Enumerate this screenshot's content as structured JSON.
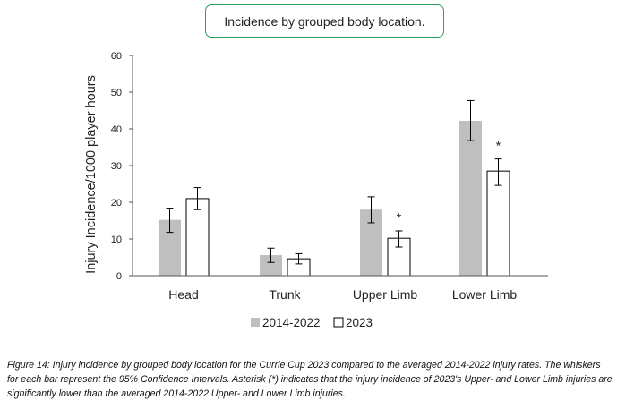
{
  "chart_data": {
    "type": "bar",
    "title": "Incidence by grouped body location.",
    "ylabel": "Injury Incidence/1000 player hours",
    "xlabel": "",
    "ylim": [
      0,
      60
    ],
    "yticks": [
      0,
      10,
      20,
      30,
      40,
      50,
      60
    ],
    "categories": [
      "Head",
      "Trunk",
      "Upper Limb",
      "Lower Limb"
    ],
    "series": [
      {
        "name": "2014-2022",
        "color": "#bfbfbf",
        "values": [
          15.2,
          5.6,
          18.0,
          42.2
        ],
        "ci_low": [
          11.8,
          3.6,
          14.4,
          36.8
        ],
        "ci_high": [
          18.4,
          7.5,
          21.5,
          47.7
        ]
      },
      {
        "name": "2023",
        "color": "#ffffff",
        "values": [
          21.0,
          4.6,
          10.2,
          28.5
        ],
        "ci_low": [
          18.0,
          3.2,
          7.8,
          24.6
        ],
        "ci_high": [
          24.0,
          6.0,
          12.2,
          31.8
        ]
      }
    ],
    "annotations": [
      {
        "category": "Upper Limb",
        "series": "2023",
        "text": "*"
      },
      {
        "category": "Lower Limb",
        "series": "2023",
        "text": "*"
      }
    ]
  },
  "caption": "Figure 14: Injury incidence by grouped body location for the Currie Cup 2023 compared to the averaged 2014-2022 injury rates. The whiskers for each bar represent the 95% Confidence Intervals. Asterisk (*) indicates that the injury incidence of 2023's Upper- and Lower Limb injuries are significantly lower than the averaged 2014-2022 Upper- and Lower Limb injuries."
}
